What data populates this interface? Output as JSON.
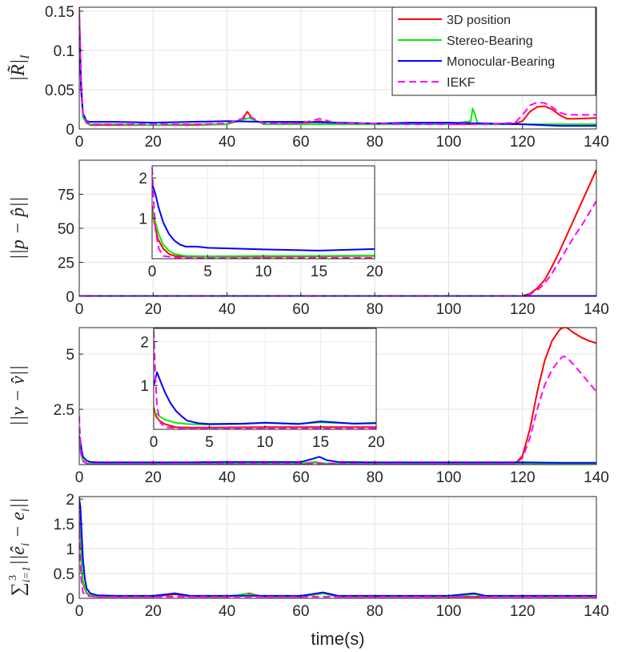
{
  "legend": [
    {
      "label": "3D position",
      "color": "#ff0000",
      "dash": false
    },
    {
      "label": "Stereo-Bearing",
      "color": "#00ee00",
      "dash": false
    },
    {
      "label": "Monocular-Bearing",
      "color": "#0000ff",
      "dash": false
    },
    {
      "label": "IEKF",
      "color": "#ff00ff",
      "dash": true
    }
  ],
  "xlabel": "time(s)",
  "chart_data": [
    {
      "type": "line",
      "ylabel": "|R̃|_I",
      "xlim": [
        0,
        140
      ],
      "ylim": [
        0,
        0.155
      ],
      "xticks": [
        "0",
        "20",
        "40",
        "60",
        "80",
        "100",
        "120",
        "140"
      ],
      "yticks": [
        "0",
        "0.05",
        "0.1",
        "0.15"
      ],
      "ytick_values": [
        0,
        0.05,
        0.1,
        0.15
      ],
      "grid": true,
      "series": [
        {
          "name": "3D position",
          "x": [
            0,
            0.5,
            1,
            2,
            3,
            10,
            20,
            30,
            40,
            44,
            45.5,
            47,
            50,
            60,
            65,
            70,
            80,
            90,
            100,
            110,
            115,
            118,
            120,
            122,
            124,
            126,
            128,
            130,
            132,
            135,
            140
          ],
          "y": [
            0.15,
            0.06,
            0.02,
            0.008,
            0.005,
            0.005,
            0.005,
            0.005,
            0.006,
            0.012,
            0.022,
            0.012,
            0.006,
            0.007,
            0.01,
            0.006,
            0.006,
            0.006,
            0.006,
            0.006,
            0.006,
            0.007,
            0.01,
            0.022,
            0.028,
            0.029,
            0.025,
            0.018,
            0.013,
            0.013,
            0.014
          ]
        },
        {
          "name": "Stereo-Bearing",
          "x": [
            0,
            0.5,
            1,
            2,
            3,
            10,
            20,
            30,
            40,
            46,
            50,
            60,
            70,
            80,
            100,
            106,
            106.5,
            107,
            107.5,
            108,
            110,
            120,
            130,
            140
          ],
          "y": [
            0.14,
            0.05,
            0.015,
            0.007,
            0.006,
            0.006,
            0.005,
            0.006,
            0.006,
            0.014,
            0.006,
            0.006,
            0.006,
            0.006,
            0.006,
            0.01,
            0.026,
            0.02,
            0.012,
            0.006,
            0.006,
            0.006,
            0.006,
            0.006
          ]
        },
        {
          "name": "Monocular-Bearing",
          "x": [
            0,
            0.5,
            1,
            2,
            3,
            10,
            20,
            30,
            40,
            50,
            60,
            70,
            80,
            90,
            100,
            110,
            120,
            130,
            140
          ],
          "y": [
            0.13,
            0.05,
            0.02,
            0.01,
            0.009,
            0.009,
            0.008,
            0.009,
            0.01,
            0.009,
            0.009,
            0.008,
            0.007,
            0.008,
            0.008,
            0.007,
            0.006,
            0.004,
            0.004
          ]
        },
        {
          "name": "IEKF",
          "x": [
            0,
            0.5,
            1,
            2,
            3,
            10,
            20,
            30,
            40,
            46,
            50,
            60,
            65,
            70,
            80,
            90,
            100,
            110,
            118,
            120,
            122,
            124,
            126,
            128,
            130,
            132,
            135,
            140
          ],
          "y": [
            0.155,
            0.06,
            0.02,
            0.008,
            0.006,
            0.006,
            0.006,
            0.006,
            0.007,
            0.016,
            0.007,
            0.007,
            0.013,
            0.007,
            0.007,
            0.006,
            0.006,
            0.006,
            0.008,
            0.018,
            0.03,
            0.034,
            0.033,
            0.028,
            0.021,
            0.018,
            0.018,
            0.018
          ]
        }
      ]
    },
    {
      "type": "line",
      "ylabel": "||p − p̂||",
      "xlim": [
        0,
        140
      ],
      "ylim": [
        0,
        100
      ],
      "xticks": [
        "0",
        "20",
        "40",
        "60",
        "80",
        "100",
        "120",
        "140"
      ],
      "yticks": [
        "0",
        "25",
        "50",
        "75"
      ],
      "ytick_values": [
        0,
        25,
        50,
        75
      ],
      "grid": true,
      "series": [
        {
          "name": "3D position",
          "x": [
            0,
            118,
            120,
            122,
            124,
            126,
            128,
            130,
            132,
            134,
            136,
            138,
            140
          ],
          "y": [
            0,
            0,
            0.3,
            2,
            6,
            12,
            22,
            33,
            45,
            57,
            69,
            81,
            93
          ]
        },
        {
          "name": "Stereo-Bearing",
          "x": [
            0,
            140
          ],
          "y": [
            0,
            0
          ]
        },
        {
          "name": "Monocular-Bearing",
          "x": [
            0,
            140
          ],
          "y": [
            0.3,
            0.3
          ]
        },
        {
          "name": "IEKF",
          "x": [
            0,
            118,
            120,
            122,
            124,
            126,
            128,
            130,
            132,
            134,
            136,
            138,
            140
          ],
          "y": [
            0,
            0,
            0.2,
            1.5,
            4.5,
            9.5,
            17,
            26,
            35,
            44,
            52,
            61,
            70
          ]
        }
      ],
      "inset": {
        "xlim": [
          0,
          20
        ],
        "ylim": [
          0,
          2.3
        ],
        "xticks": [
          "0",
          "5",
          "10",
          "15",
          "20"
        ],
        "yticks": [
          "1",
          "2"
        ],
        "ytick_values": [
          1,
          2
        ],
        "series": [
          {
            "name": "3D position",
            "x": [
              0,
              0.2,
              0.5,
              1,
              1.5,
              2,
              3,
              5,
              10,
              15,
              20
            ],
            "y": [
              1.3,
              0.9,
              0.5,
              0.25,
              0.12,
              0.07,
              0.05,
              0.05,
              0.05,
              0.06,
              0.07
            ]
          },
          {
            "name": "Stereo-Bearing",
            "x": [
              0,
              0.3,
              0.6,
              1,
              1.5,
              2,
              3,
              5,
              10,
              15,
              20
            ],
            "y": [
              1.2,
              0.9,
              0.6,
              0.35,
              0.2,
              0.12,
              0.07,
              0.06,
              0.07,
              0.07,
              0.08
            ]
          },
          {
            "name": "Monocular-Bearing",
            "x": [
              0,
              0.3,
              0.6,
              1,
              1.5,
              2,
              2.5,
              3,
              4,
              5,
              10,
              15,
              20
            ],
            "y": [
              1.85,
              1.6,
              1.25,
              0.9,
              0.62,
              0.45,
              0.35,
              0.3,
              0.3,
              0.27,
              0.23,
              0.2,
              0.24
            ]
          },
          {
            "name": "IEKF",
            "x": [
              0,
              0.15,
              0.3,
              0.6,
              1,
              2,
              5,
              10,
              15,
              20
            ],
            "y": [
              2.25,
              1.4,
              0.7,
              0.25,
              0.07,
              0.03,
              0.02,
              0.02,
              0.02,
              0.02
            ]
          }
        ]
      }
    },
    {
      "type": "line",
      "ylabel": "||v − v̂||",
      "xlim": [
        0,
        140
      ],
      "ylim": [
        0,
        6.2
      ],
      "xticks": [
        "0",
        "20",
        "40",
        "60",
        "80",
        "100",
        "120",
        "140"
      ],
      "yticks": [
        "2.5",
        "5"
      ],
      "ytick_values": [
        2.5,
        5
      ],
      "grid": true,
      "series": [
        {
          "name": "3D position",
          "x": [
            0,
            0.5,
            1,
            2,
            5,
            20,
            40,
            60,
            64,
            66,
            80,
            100,
            118,
            120,
            122,
            124,
            126,
            128,
            130,
            131,
            132,
            134,
            136,
            138,
            140
          ],
          "y": [
            1.2,
            0.5,
            0.2,
            0.05,
            0.03,
            0.03,
            0.04,
            0.04,
            0.1,
            0.05,
            0.04,
            0.04,
            0.04,
            0.4,
            1.6,
            3.3,
            4.7,
            5.6,
            6.1,
            6.2,
            6.2,
            5.95,
            5.75,
            5.6,
            5.5
          ]
        },
        {
          "name": "Stereo-Bearing",
          "x": [
            0,
            0.5,
            1,
            2,
            5,
            20,
            40,
            60,
            64,
            66,
            80,
            100,
            120,
            140
          ],
          "y": [
            1.1,
            0.45,
            0.18,
            0.06,
            0.05,
            0.05,
            0.06,
            0.06,
            0.12,
            0.06,
            0.06,
            0.06,
            0.06,
            0.06
          ]
        },
        {
          "name": "Monocular-Bearing",
          "x": [
            0,
            0.3,
            0.6,
            1,
            2,
            3,
            5,
            10,
            20,
            30,
            40,
            50,
            60,
            63,
            65,
            67,
            70,
            80,
            100,
            120,
            130,
            140
          ],
          "y": [
            1.3,
            1.1,
            0.7,
            0.35,
            0.18,
            0.12,
            0.1,
            0.1,
            0.1,
            0.1,
            0.12,
            0.12,
            0.12,
            0.25,
            0.35,
            0.2,
            0.12,
            0.1,
            0.1,
            0.1,
            0.08,
            0.08
          ]
        },
        {
          "name": "IEKF",
          "x": [
            0,
            0.2,
            0.5,
            1,
            2,
            5,
            20,
            40,
            60,
            80,
            100,
            118,
            120,
            122,
            124,
            126,
            128,
            130,
            131,
            132,
            134,
            136,
            138,
            140
          ],
          "y": [
            2.2,
            1.3,
            0.5,
            0.15,
            0.05,
            0.04,
            0.04,
            0.05,
            0.05,
            0.04,
            0.04,
            0.04,
            0.3,
            1.2,
            2.5,
            3.6,
            4.3,
            4.75,
            4.9,
            4.85,
            4.5,
            4.1,
            3.7,
            3.3
          ]
        }
      ],
      "inset": {
        "xlim": [
          0,
          20
        ],
        "ylim": [
          0,
          2.3
        ],
        "xticks": [
          "0",
          "5",
          "10",
          "15",
          "20"
        ],
        "yticks": [
          "1",
          "2"
        ],
        "ytick_values": [
          1,
          2
        ],
        "series": [
          {
            "name": "3D position",
            "x": [
              0,
              0.2,
              0.5,
              1,
              1.5,
              2,
              3,
              5,
              10,
              15,
              20
            ],
            "y": [
              0.5,
              0.3,
              0.2,
              0.12,
              0.08,
              0.05,
              0.04,
              0.04,
              0.05,
              0.05,
              0.05
            ]
          },
          {
            "name": "Stereo-Bearing",
            "x": [
              0,
              0.5,
              1,
              2,
              3,
              5,
              8,
              10,
              13,
              15,
              18,
              20
            ],
            "y": [
              0.4,
              0.3,
              0.22,
              0.15,
              0.12,
              0.11,
              0.12,
              0.15,
              0.13,
              0.16,
              0.13,
              0.15
            ]
          },
          {
            "name": "Monocular-Bearing",
            "x": [
              0,
              0.3,
              0.6,
              1,
              1.5,
              2,
              2.5,
              3,
              4,
              5,
              8,
              10,
              13,
              15,
              18,
              20
            ],
            "y": [
              1.0,
              1.3,
              1.1,
              0.85,
              0.6,
              0.42,
              0.3,
              0.2,
              0.14,
              0.12,
              0.13,
              0.15,
              0.12,
              0.18,
              0.13,
              0.14
            ]
          },
          {
            "name": "IEKF",
            "x": [
              0,
              0.15,
              0.3,
              0.6,
              1,
              2,
              5,
              10,
              15,
              20
            ],
            "y": [
              2.25,
              1.2,
              0.5,
              0.15,
              0.05,
              0.03,
              0.03,
              0.03,
              0.03,
              0.03
            ]
          }
        ]
      }
    },
    {
      "type": "line",
      "ylabel": "∑ ||ê_i − e_i||",
      "ylabel_sup": "3",
      "ylabel_sub": "i=1",
      "xlim": [
        0,
        140
      ],
      "ylim": [
        0,
        2.05
      ],
      "xticks": [
        "0",
        "20",
        "40",
        "60",
        "80",
        "100",
        "120",
        "140"
      ],
      "yticks": [
        "0",
        "0.5",
        "1",
        "1.5",
        "2"
      ],
      "ytick_values": [
        0,
        0.5,
        1,
        1.5,
        2
      ],
      "grid": true,
      "series": [
        {
          "name": "3D position",
          "x": [
            0,
            0.3,
            0.6,
            1,
            2,
            3,
            5,
            10,
            20,
            26,
            30,
            40,
            46,
            50,
            60,
            66,
            70,
            80,
            100,
            110,
            120,
            140
          ],
          "y": [
            1.9,
            1.5,
            0.7,
            0.3,
            0.1,
            0.05,
            0.03,
            0.03,
            0.03,
            0.08,
            0.03,
            0.03,
            0.1,
            0.03,
            0.03,
            0.1,
            0.03,
            0.03,
            0.03,
            0.03,
            0.03,
            0.03
          ]
        },
        {
          "name": "Stereo-Bearing",
          "x": [
            0,
            0.3,
            0.6,
            1,
            2,
            3,
            5,
            10,
            20,
            26,
            30,
            40,
            45,
            50,
            60,
            66,
            70,
            80,
            100,
            107,
            110,
            120,
            140
          ],
          "y": [
            2.05,
            1.6,
            0.8,
            0.35,
            0.12,
            0.06,
            0.04,
            0.04,
            0.04,
            0.1,
            0.04,
            0.04,
            0.09,
            0.04,
            0.04,
            0.1,
            0.04,
            0.04,
            0.04,
            0.08,
            0.04,
            0.04,
            0.04
          ]
        },
        {
          "name": "Monocular-Bearing",
          "x": [
            0,
            0.3,
            0.6,
            1,
            1.5,
            2,
            3,
            5,
            10,
            20,
            26,
            30,
            40,
            50,
            60,
            66,
            70,
            80,
            100,
            107,
            110,
            120,
            140
          ],
          "y": [
            2.0,
            1.85,
            1.4,
            0.8,
            0.4,
            0.2,
            0.1,
            0.06,
            0.05,
            0.05,
            0.1,
            0.05,
            0.05,
            0.05,
            0.05,
            0.12,
            0.05,
            0.05,
            0.05,
            0.1,
            0.05,
            0.05,
            0.05
          ]
        },
        {
          "name": "IEKF",
          "x": [
            0,
            0.2,
            0.5,
            1,
            2,
            5,
            20,
            40,
            60,
            80,
            100,
            120,
            140
          ],
          "y": [
            1.8,
            1.0,
            0.4,
            0.12,
            0.05,
            0.03,
            0.03,
            0.03,
            0.03,
            0.03,
            0.03,
            0.03,
            0.03
          ]
        }
      ]
    }
  ]
}
